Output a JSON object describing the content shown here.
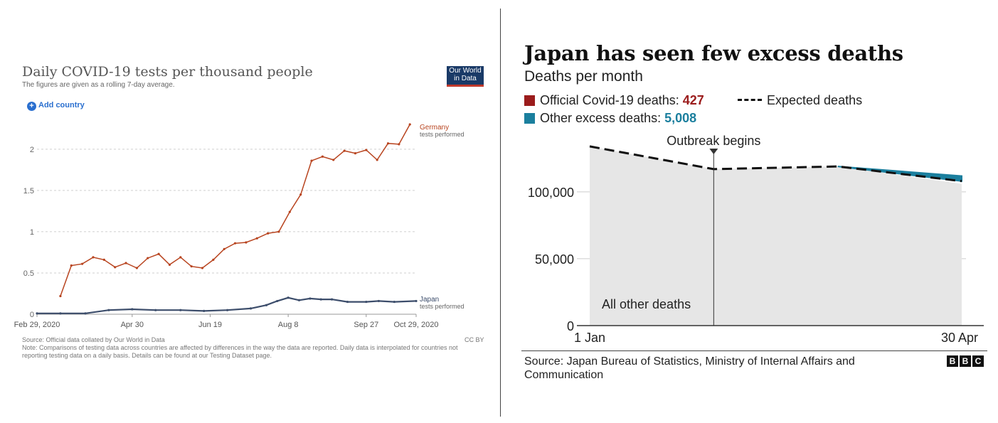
{
  "left": {
    "title": "Daily COVID-19 tests per thousand people",
    "subtitle": "The figures are given as a rolling 7-day average.",
    "logo_line1": "Our World",
    "logo_line2": "in Data",
    "add_country_label": "Add country",
    "source": "Source: Official data collated by Our World in Data",
    "note": "Note: Comparisons of testing data across countries are affected by differences in the way the data are reported. Daily data is interpolated for countries not reporting testing data on a daily basis. Details can be found at our Testing Dataset page.",
    "license": "CC BY",
    "colors": {
      "germany": "#b8441f",
      "japan": "#3c4d6b",
      "grid": "#cfcfcf"
    }
  },
  "right": {
    "title": "Japan has seen few excess deaths",
    "subtitle": "Deaths per month",
    "legend_official_label": "Official Covid-19 deaths: ",
    "legend_official_value": "427",
    "legend_expected_label": "Expected deaths",
    "legend_excess_label": "Other excess deaths: ",
    "legend_excess_value": "5,008",
    "annotation_outbreak": "Outbreak begins",
    "area_label": "All other deaths",
    "source": "Source: Japan Bureau of Statistics, Ministry of Internal Affairs and Communication",
    "logo_letters": [
      "B",
      "B",
      "C"
    ],
    "colors": {
      "official": "#9b1c1c",
      "excess": "#1b7f9e",
      "area": "#e6e6e6",
      "expected": "#111111"
    }
  },
  "chart_data": [
    {
      "type": "line",
      "title": "Daily COVID-19 tests per thousand people",
      "subtitle": "The figures are given as a rolling 7-day average.",
      "x_ticks": [
        "Feb 29, 2020",
        "Apr 30",
        "Jun 19",
        "Aug 8",
        "Sep 27",
        "Oct 29, 2020"
      ],
      "y_ticks": [
        "0",
        "0.5",
        "1",
        "1.5",
        "2"
      ],
      "ylim": [
        0,
        2.3
      ],
      "x_range": [
        "2020-02-29",
        "2020-10-29"
      ],
      "grid": true,
      "series": [
        {
          "name": "Germany",
          "end_label_1": "Germany",
          "end_label_2": "tests performed",
          "points": [
            [
              "2020-03-15",
              0.22
            ],
            [
              "2020-03-22",
              0.59
            ],
            [
              "2020-03-29",
              0.61
            ],
            [
              "2020-04-05",
              0.69
            ],
            [
              "2020-04-12",
              0.66
            ],
            [
              "2020-04-19",
              0.57
            ],
            [
              "2020-04-26",
              0.62
            ],
            [
              "2020-05-03",
              0.56
            ],
            [
              "2020-05-10",
              0.68
            ],
            [
              "2020-05-17",
              0.73
            ],
            [
              "2020-05-24",
              0.6
            ],
            [
              "2020-05-31",
              0.69
            ],
            [
              "2020-06-07",
              0.58
            ],
            [
              "2020-06-14",
              0.56
            ],
            [
              "2020-06-21",
              0.66
            ],
            [
              "2020-06-28",
              0.79
            ],
            [
              "2020-07-05",
              0.86
            ],
            [
              "2020-07-12",
              0.87
            ],
            [
              "2020-07-19",
              0.92
            ],
            [
              "2020-07-26",
              0.98
            ],
            [
              "2020-08-02",
              1.0
            ],
            [
              "2020-08-09",
              1.24
            ],
            [
              "2020-08-16",
              1.45
            ],
            [
              "2020-08-23",
              1.86
            ],
            [
              "2020-08-30",
              1.91
            ],
            [
              "2020-09-06",
              1.87
            ],
            [
              "2020-09-13",
              1.98
            ],
            [
              "2020-09-20",
              1.95
            ],
            [
              "2020-09-27",
              1.99
            ],
            [
              "2020-10-04",
              1.87
            ],
            [
              "2020-10-11",
              2.07
            ],
            [
              "2020-10-18",
              2.06
            ],
            [
              "2020-10-25",
              2.3
            ]
          ]
        },
        {
          "name": "Japan",
          "end_label_1": "Japan",
          "end_label_2": "tests performed",
          "points": [
            [
              "2020-02-29",
              0.01
            ],
            [
              "2020-03-15",
              0.01
            ],
            [
              "2020-03-31",
              0.01
            ],
            [
              "2020-04-15",
              0.05
            ],
            [
              "2020-04-30",
              0.06
            ],
            [
              "2020-05-15",
              0.05
            ],
            [
              "2020-05-31",
              0.05
            ],
            [
              "2020-06-15",
              0.04
            ],
            [
              "2020-06-30",
              0.05
            ],
            [
              "2020-07-15",
              0.07
            ],
            [
              "2020-07-25",
              0.11
            ],
            [
              "2020-08-01",
              0.16
            ],
            [
              "2020-08-08",
              0.2
            ],
            [
              "2020-08-15",
              0.17
            ],
            [
              "2020-08-22",
              0.19
            ],
            [
              "2020-08-29",
              0.18
            ],
            [
              "2020-09-05",
              0.18
            ],
            [
              "2020-09-15",
              0.15
            ],
            [
              "2020-09-27",
              0.15
            ],
            [
              "2020-10-05",
              0.16
            ],
            [
              "2020-10-15",
              0.15
            ],
            [
              "2020-10-29",
              0.16
            ]
          ]
        }
      ]
    },
    {
      "type": "area",
      "title": "Japan has seen few excess deaths",
      "subtitle": "Deaths per month",
      "x_ticks": [
        "1 Jan",
        "30 Apr"
      ],
      "y_ticks": [
        "0",
        "50,000",
        "100,000"
      ],
      "ylim": [
        0,
        135000
      ],
      "x_range": [
        0,
        3
      ],
      "grid": true,
      "series": [
        {
          "name": "All other deaths",
          "x": [
            0,
            1,
            2,
            3
          ],
          "values": [
            134000,
            117000,
            119000,
            106000
          ]
        },
        {
          "name": "Expected deaths",
          "x": [
            0,
            1,
            2,
            3
          ],
          "values": [
            134000,
            117000,
            119000,
            108000
          ]
        },
        {
          "name": "Other excess deaths",
          "x": [
            2,
            3
          ],
          "values": [
            0,
            5008
          ]
        },
        {
          "name": "Official Covid-19 deaths",
          "total": 427
        }
      ],
      "annotation": {
        "label": "Outbreak begins",
        "x": 1
      }
    }
  ]
}
